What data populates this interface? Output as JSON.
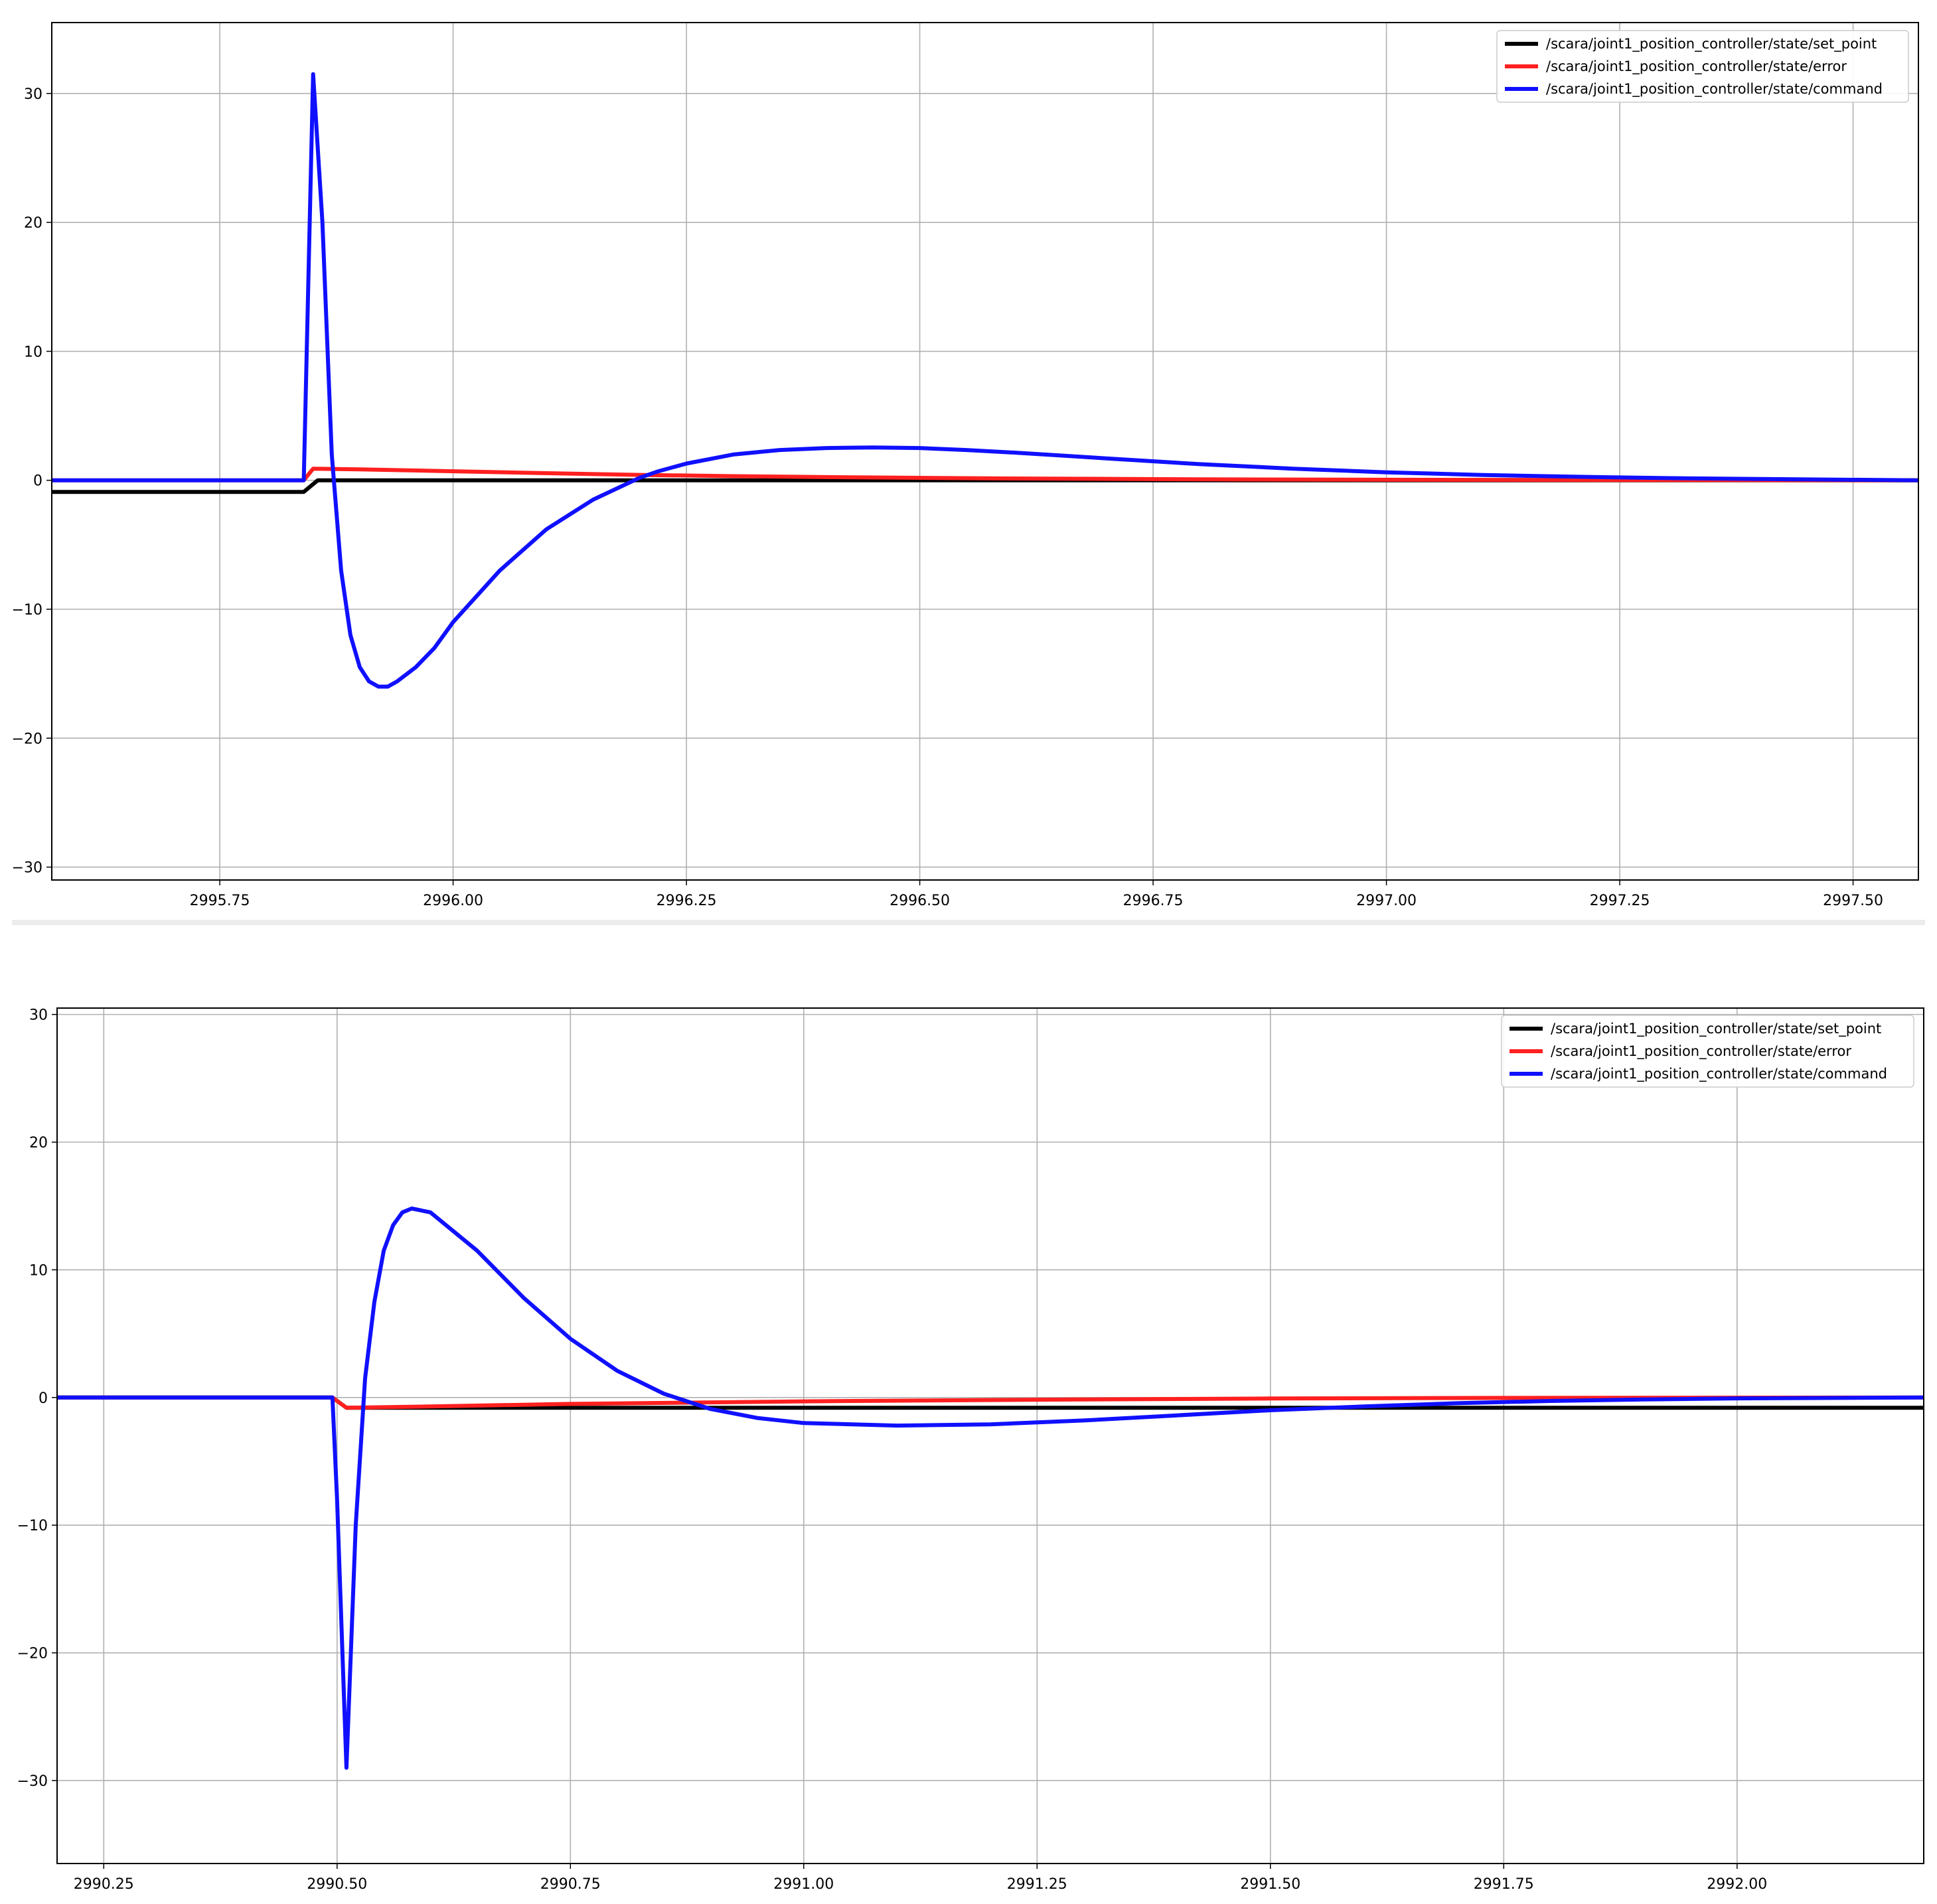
{
  "chart_data": [
    {
      "type": "line",
      "xlim": [
        2995.57,
        2997.57
      ],
      "ylim": [
        -31,
        35.5
      ],
      "xticks": [
        2995.75,
        2996.0,
        2996.25,
        2996.5,
        2996.75,
        2997.0,
        2997.25,
        2997.5
      ],
      "xtick_labels": [
        "2995.75",
        "2996.00",
        "2996.25",
        "2996.50",
        "2996.75",
        "2997.00",
        "2997.25",
        "2997.50"
      ],
      "yticks": [
        -30,
        -20,
        -10,
        0,
        10,
        20,
        30
      ],
      "ytick_labels": [
        "−30",
        "−20",
        "−10",
        "0",
        "10",
        "20",
        "30"
      ],
      "grid": true,
      "legend_position": "top-right",
      "series": [
        {
          "name": "/scara/joint1_position_controller/state/set_point",
          "color": "#000000",
          "x": [
            2995.57,
            2995.84,
            2995.855,
            2997.57
          ],
          "y": [
            -0.9,
            -0.9,
            0.0,
            0.0
          ]
        },
        {
          "name": "/scara/joint1_position_controller/state/error",
          "color": "#ff2020",
          "x": [
            2995.57,
            2995.84,
            2995.85,
            2995.9,
            2996.0,
            2996.1,
            2996.2,
            2996.3,
            2996.4,
            2996.5,
            2996.6,
            2996.8,
            2997.0,
            2997.2,
            2997.57
          ],
          "y": [
            0.0,
            0.0,
            0.9,
            0.85,
            0.7,
            0.55,
            0.42,
            0.32,
            0.25,
            0.19,
            0.14,
            0.08,
            0.04,
            0.02,
            0.0
          ]
        },
        {
          "name": "/scara/joint1_position_controller/state/command",
          "color": "#1010ff",
          "x": [
            2995.57,
            2995.84,
            2995.85,
            2995.86,
            2995.87,
            2995.88,
            2995.89,
            2995.9,
            2995.91,
            2995.92,
            2995.93,
            2995.94,
            2995.96,
            2995.98,
            2996.0,
            2996.05,
            2996.1,
            2996.15,
            2996.2,
            2996.22,
            2996.25,
            2996.3,
            2996.35,
            2996.4,
            2996.45,
            2996.5,
            2996.55,
            2996.6,
            2996.7,
            2996.8,
            2996.9,
            2997.0,
            2997.1,
            2997.2,
            2997.3,
            2997.4,
            2997.57
          ],
          "y": [
            0.0,
            0.0,
            31.5,
            20.0,
            2.0,
            -7.0,
            -12.0,
            -14.5,
            -15.6,
            -16.0,
            -16.0,
            -15.6,
            -14.5,
            -13.0,
            -11.0,
            -7.0,
            -3.8,
            -1.5,
            0.2,
            0.7,
            1.3,
            2.0,
            2.35,
            2.5,
            2.55,
            2.5,
            2.35,
            2.15,
            1.7,
            1.25,
            0.9,
            0.62,
            0.42,
            0.28,
            0.17,
            0.1,
            0.0
          ]
        }
      ]
    },
    {
      "type": "line",
      "xlim": [
        2990.2,
        2992.2
      ],
      "ylim": [
        -36.5,
        30.5
      ],
      "xticks": [
        2990.25,
        2990.5,
        2990.75,
        2991.0,
        2991.25,
        2991.5,
        2991.75,
        2992.0
      ],
      "xtick_labels": [
        "2990.25",
        "2990.50",
        "2990.75",
        "2991.00",
        "2991.25",
        "2991.50",
        "2991.75",
        "2992.00"
      ],
      "yticks": [
        -30,
        -20,
        -10,
        0,
        10,
        20,
        30
      ],
      "ytick_labels": [
        "−30",
        "−20",
        "−10",
        "0",
        "10",
        "20",
        "30"
      ],
      "grid": true,
      "legend_position": "top-right",
      "series": [
        {
          "name": "/scara/joint1_position_controller/state/set_point",
          "color": "#000000",
          "x": [
            2990.2,
            2990.495,
            2990.51,
            2992.2
          ],
          "y": [
            0.0,
            0.0,
            -0.8,
            -0.8
          ]
        },
        {
          "name": "/scara/joint1_position_controller/state/error",
          "color": "#ff2020",
          "x": [
            2990.2,
            2990.495,
            2990.51,
            2990.6,
            2990.75,
            2991.0,
            2991.25,
            2991.5,
            2991.75,
            2992.2
          ],
          "y": [
            0.0,
            0.0,
            -0.8,
            -0.7,
            -0.5,
            -0.3,
            -0.17,
            -0.08,
            -0.03,
            0.0
          ]
        },
        {
          "name": "/scara/joint1_position_controller/state/command",
          "color": "#1010ff",
          "x": [
            2990.2,
            2990.495,
            2990.5,
            2990.51,
            2990.52,
            2990.53,
            2990.54,
            2990.55,
            2990.56,
            2990.57,
            2990.58,
            2990.6,
            2990.65,
            2990.7,
            2990.75,
            2990.8,
            2990.85,
            2990.9,
            2990.95,
            2991.0,
            2991.1,
            2991.2,
            2991.3,
            2991.4,
            2991.5,
            2991.6,
            2991.7,
            2991.8,
            2991.9,
            2992.0,
            2992.2
          ],
          "y": [
            0.0,
            0.0,
            -8.0,
            -29.0,
            -10.0,
            1.5,
            7.5,
            11.5,
            13.5,
            14.5,
            14.8,
            14.5,
            11.5,
            7.8,
            4.6,
            2.1,
            0.3,
            -0.9,
            -1.6,
            -2.0,
            -2.2,
            -2.1,
            -1.8,
            -1.4,
            -1.0,
            -0.7,
            -0.45,
            -0.27,
            -0.15,
            -0.07,
            0.0
          ]
        }
      ]
    }
  ]
}
